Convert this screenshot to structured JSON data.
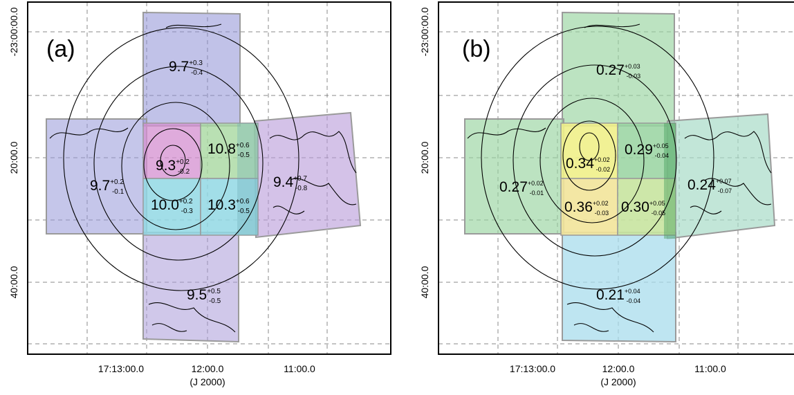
{
  "panels": [
    {
      "id": "a",
      "label": "(a)",
      "y_ticks": [
        "-23:00:00.0",
        "20:00.0",
        "40:00.0"
      ],
      "x_ticks": [
        "17:13:00.0",
        "12:00.0",
        "11:00.0"
      ],
      "x_axis_label": "(J 2000)",
      "regions": [
        {
          "value": "9.7",
          "plus": "+0.3",
          "minus": "-0.4",
          "color": "#8e8fd6"
        },
        {
          "value": "9.7",
          "plus": "+0.2",
          "minus": "-0.1",
          "color": "#9698d8"
        },
        {
          "value": "9.4",
          "plus": "+0.7",
          "minus": "-0.8",
          "color": "#b89ad8"
        },
        {
          "value": "9.5",
          "plus": "+0.5",
          "minus": "-0.5",
          "color": "#a99ad8"
        },
        {
          "value": "9.3",
          "plus": "+0.2",
          "minus": "-0.2",
          "color": "#d48fd0"
        },
        {
          "value": "10.8",
          "plus": "+0.6",
          "minus": "-0.5",
          "color": "#a8d8a0"
        },
        {
          "value": "10.0",
          "plus": "+0.2",
          "minus": "-0.3",
          "color": "#92d8e4"
        },
        {
          "value": "10.3",
          "plus": "+0.6",
          "minus": "-0.5",
          "color": "#92d8e4"
        }
      ]
    },
    {
      "id": "b",
      "label": "(b)",
      "y_ticks": [
        "-23:00:00.0",
        "20:00.0",
        "40:00.0"
      ],
      "x_ticks": [
        "17:13:00.0",
        "12:00.0",
        "11:00.0"
      ],
      "x_axis_label": "(J 2000)",
      "regions": [
        {
          "value": "0.27",
          "plus": "+0.03",
          "minus": "-0.03",
          "color": "#98d4a0"
        },
        {
          "value": "0.27",
          "plus": "+0.02",
          "minus": "-0.01",
          "color": "#98d4a0"
        },
        {
          "value": "0.24",
          "plus": "+0.07",
          "minus": "-0.07",
          "color": "#a8dcc8"
        },
        {
          "value": "0.21",
          "plus": "+0.04",
          "minus": "-0.04",
          "color": "#a8dcec"
        },
        {
          "value": "0.34",
          "plus": "+0.02",
          "minus": "-0.02",
          "color": "#f0f08a"
        },
        {
          "value": "0.29",
          "plus": "+0.05",
          "minus": "-0.04",
          "color": "#98d4a0"
        },
        {
          "value": "0.36",
          "plus": "+0.02",
          "minus": "-0.03",
          "color": "#f2e49a"
        },
        {
          "value": "0.30",
          "plus": "+0.05",
          "minus": "-0.05",
          "color": "#c8e4a0"
        }
      ]
    }
  ]
}
